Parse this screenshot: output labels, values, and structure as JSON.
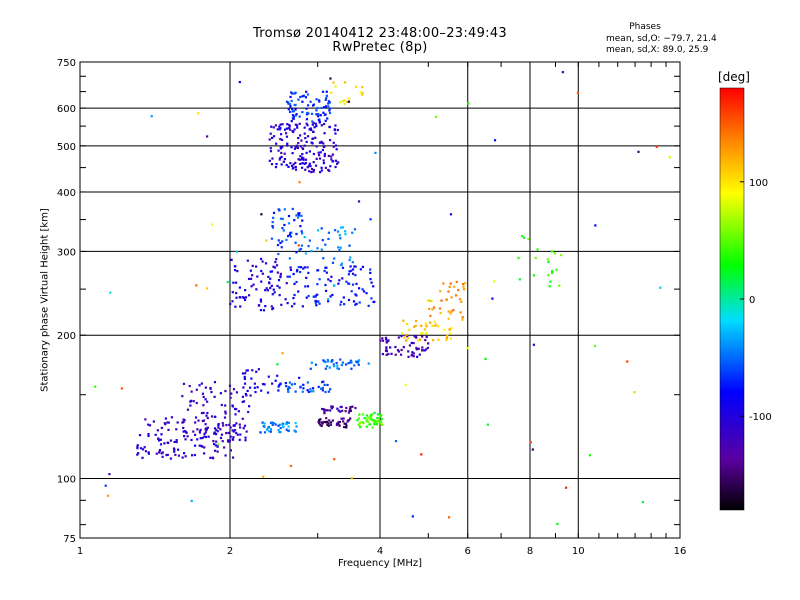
{
  "chart_data": {
    "type": "scatter",
    "title": "Tromsø 20140412 23:48:00–23:49:43",
    "subtitle": "RwPretec (8p)",
    "xlabel": "Frequency [MHz]",
    "ylabel": "Stationary phase Virtual Height [km]",
    "x_scale": "log",
    "y_scale": "log",
    "xlim": [
      1,
      16
    ],
    "ylim": [
      75,
      750
    ],
    "x_ticks": [
      1,
      2,
      4,
      6,
      8,
      10,
      16
    ],
    "x_tick_labels": [
      "1",
      "2",
      "4",
      "6",
      "8",
      "10",
      "16"
    ],
    "y_ticks": [
      75,
      100,
      200,
      300,
      400,
      500,
      600,
      750
    ],
    "y_tick_labels": [
      "75",
      "100",
      "200",
      "300",
      "400",
      "500",
      "600",
      "750"
    ],
    "grid": true,
    "phases": {
      "heading": "Phases",
      "line_o": "mean, sd,O: −79.7, 21.4",
      "line_x": "mean, sd,X: 89.0, 25.9"
    },
    "colorbar": {
      "label": "[deg]",
      "range": [
        -180,
        180
      ],
      "tick_labels": [
        "100",
        "0",
        "-100"
      ],
      "tick_values": [
        100,
        0,
        -100
      ]
    },
    "clusters": [
      {
        "x": [
          1.3,
          2.05
        ],
        "y": [
          110,
          135
        ],
        "phase": -110,
        "n": 140
      },
      {
        "x": [
          1.6,
          2.2
        ],
        "y": [
          120,
          160
        ],
        "phase": -115,
        "n": 90
      },
      {
        "x": [
          2.3,
          2.75
        ],
        "y": [
          125,
          132
        ],
        "phase": -40,
        "n": 40
      },
      {
        "x": [
          3.0,
          3.5
        ],
        "y": [
          128,
          134
        ],
        "phase": -150,
        "n": 40
      },
      {
        "x": [
          3.6,
          4.05
        ],
        "y": [
          128,
          137
        ],
        "phase": 45,
        "n": 50
      },
      {
        "x": [
          3.05,
          3.6
        ],
        "y": [
          137,
          142
        ],
        "phase": -130,
        "n": 30
      },
      {
        "x": [
          2.5,
          3.2
        ],
        "y": [
          152,
          160
        ],
        "phase": -60,
        "n": 40
      },
      {
        "x": [
          2.1,
          2.5
        ],
        "y": [
          150,
          170
        ],
        "phase": -95,
        "n": 25
      },
      {
        "x": [
          2.9,
          3.8
        ],
        "y": [
          170,
          178
        ],
        "phase": -50,
        "n": 40
      },
      {
        "x": [
          4.0,
          5.0
        ],
        "y": [
          180,
          200
        ],
        "phase": -120,
        "n": 55
      },
      {
        "x": [
          4.4,
          5.6
        ],
        "y": [
          195,
          215
        ],
        "phase": 110,
        "n": 40
      },
      {
        "x": [
          5.0,
          6.0
        ],
        "y": [
          215,
          260
        ],
        "phase": 130,
        "n": 35
      },
      {
        "x": [
          2.0,
          2.6
        ],
        "y": [
          225,
          290
        ],
        "phase": -100,
        "n": 80
      },
      {
        "x": [
          2.6,
          3.9
        ],
        "y": [
          230,
          280
        ],
        "phase": -80,
        "n": 100
      },
      {
        "x": [
          2.4,
          2.8
        ],
        "y": [
          290,
          370
        ],
        "phase": -60,
        "n": 50
      },
      {
        "x": [
          2.8,
          3.6
        ],
        "y": [
          280,
          340
        ],
        "phase": -45,
        "n": 35
      },
      {
        "x": [
          2.4,
          3.3
        ],
        "y": [
          440,
          560
        ],
        "phase": -105,
        "n": 180
      },
      {
        "x": [
          2.6,
          3.2
        ],
        "y": [
          560,
          650
        ],
        "phase": -70,
        "n": 80
      },
      {
        "x": [
          3.1,
          3.7
        ],
        "y": [
          600,
          680
        ],
        "phase": 100,
        "n": 15
      },
      {
        "x": [
          7.5,
          9.4
        ],
        "y": [
          250,
          330
        ],
        "phase": 40,
        "n": 20
      }
    ],
    "scattered_points": {
      "xlim": [
        1.0,
        15.5
      ],
      "ylim": [
        78,
        720
      ],
      "n": 70
    }
  }
}
